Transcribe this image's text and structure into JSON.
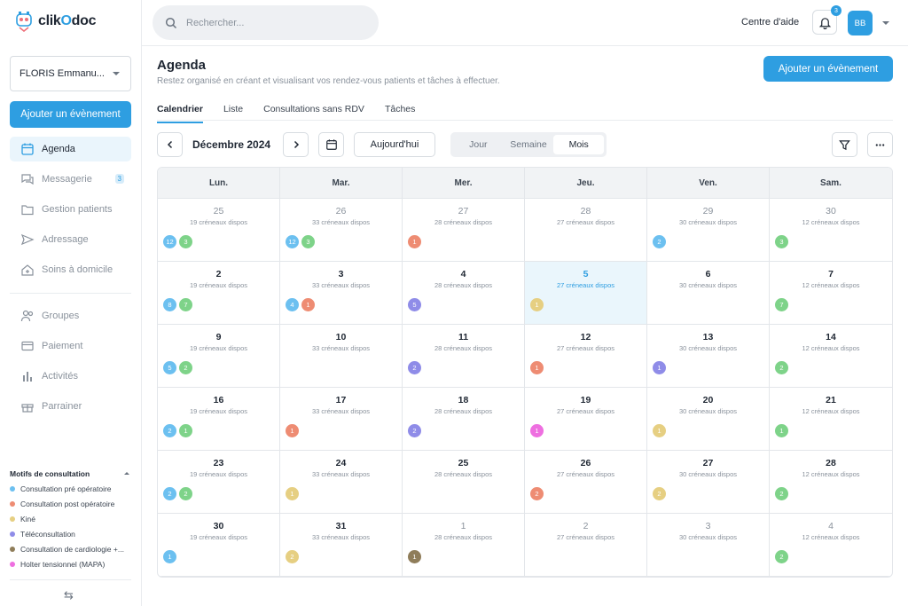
{
  "brand": {
    "name_prefix": "clik",
    "name_o": "O",
    "name_suffix": "doc"
  },
  "sidebar": {
    "user": "FLORIS Emmanu...",
    "add_label": "Ajouter un évènement",
    "items": [
      {
        "label": "Agenda",
        "icon": "calendar-icon"
      },
      {
        "label": "Messagerie",
        "icon": "chat-icon",
        "badge": "3"
      },
      {
        "label": "Gestion patients",
        "icon": "folder-icon"
      },
      {
        "label": "Adressage",
        "icon": "send-icon"
      },
      {
        "label": "Soins à domicile",
        "icon": "home-care-icon"
      },
      {
        "label": "Groupes",
        "icon": "users-icon"
      },
      {
        "label": "Paiement",
        "icon": "card-icon"
      },
      {
        "label": "Activités",
        "icon": "bar-chart-icon"
      },
      {
        "label": "Parrainer",
        "icon": "gift-icon"
      }
    ],
    "motifs_title": "Motifs de consultation",
    "motifs": [
      {
        "label": "Consultation pré opératoire",
        "color": "#6cc0f0"
      },
      {
        "label": "Consultation post opératoire",
        "color": "#ee8c73"
      },
      {
        "label": "Kiné",
        "color": "#e6cf82"
      },
      {
        "label": "Téléconsultation",
        "color": "#8f8ce8"
      },
      {
        "label": "Consultation de cardiologie +...",
        "color": "#8f7d5a"
      },
      {
        "label": "Holter tensionnel (MAPA)",
        "color": "#ee6fe0"
      }
    ]
  },
  "topbar": {
    "search_placeholder": "Rechercher...",
    "help": "Centre d'aide",
    "notif_count": "3",
    "avatar": "BB"
  },
  "page": {
    "title": "Agenda",
    "subtitle": "Restez organisé en créant et visualisant vos rendez-vous patients et tâches à effectuer.",
    "add_label": "Ajouter un évènement"
  },
  "tabs": [
    "Calendrier",
    "Liste",
    "Consultations sans RDV",
    "Tâches"
  ],
  "toolbar": {
    "month": "Décembre 2024",
    "today": "Aujourd'hui",
    "views": [
      "Jour",
      "Semaine",
      "Mois"
    ],
    "active_view": "Mois"
  },
  "colors": {
    "blue": "#6cc0f0",
    "green": "#7ed389",
    "red": "#ee8c73",
    "yellow": "#e6cf82",
    "purple": "#8f8ce8",
    "brown": "#8f7d5a",
    "pink": "#ee6fe0"
  },
  "calendar": {
    "days": [
      "Lun.",
      "Mar.",
      "Mer.",
      "Jeu.",
      "Ven.",
      "Sam."
    ],
    "weeks": [
      [
        {
          "d": "25",
          "s": "19 créneaux dispos",
          "m": true,
          "b": [
            [
              "12",
              "blue"
            ],
            [
              "3",
              "green"
            ]
          ]
        },
        {
          "d": "26",
          "s": "33 créneaux dispos",
          "m": true,
          "b": [
            [
              "12",
              "blue"
            ],
            [
              "3",
              "green"
            ]
          ]
        },
        {
          "d": "27",
          "s": "28 créneaux dispos",
          "m": true,
          "b": [
            [
              "1",
              "red"
            ]
          ]
        },
        {
          "d": "28",
          "s": "27 créneaux dispos",
          "m": true,
          "b": []
        },
        {
          "d": "29",
          "s": "30 créneaux dispos",
          "m": true,
          "b": [
            [
              "2",
              "blue"
            ]
          ]
        },
        {
          "d": "30",
          "s": "12 créneaux dispos",
          "m": true,
          "b": [
            [
              "3",
              "green"
            ]
          ]
        }
      ],
      [
        {
          "d": "2",
          "s": "19 créneaux dispos",
          "b": [
            [
              "8",
              "blue"
            ],
            [
              "7",
              "green"
            ]
          ]
        },
        {
          "d": "3",
          "s": "33 créneaux dispos",
          "b": [
            [
              "4",
              "blue"
            ],
            [
              "1",
              "red"
            ]
          ]
        },
        {
          "d": "4",
          "s": "28 créneaux dispos",
          "b": [
            [
              "5",
              "purple"
            ]
          ]
        },
        {
          "d": "5",
          "s": "27 créneaux dispos",
          "t": true,
          "b": [
            [
              "1",
              "yellow"
            ]
          ]
        },
        {
          "d": "6",
          "s": "30 créneaux dispos",
          "b": []
        },
        {
          "d": "7",
          "s": "12 créneaux dispos",
          "b": [
            [
              "7",
              "green"
            ]
          ]
        }
      ],
      [
        {
          "d": "9",
          "s": "19 créneaux dispos",
          "b": [
            [
              "5",
              "blue"
            ],
            [
              "2",
              "green"
            ]
          ]
        },
        {
          "d": "10",
          "s": "33 créneaux dispos",
          "b": []
        },
        {
          "d": "11",
          "s": "28 créneaux dispos",
          "b": [
            [
              "2",
              "purple"
            ]
          ]
        },
        {
          "d": "12",
          "s": "27 créneaux dispos",
          "b": [
            [
              "1",
              "red"
            ]
          ]
        },
        {
          "d": "13",
          "s": "30 créneaux dispos",
          "b": [
            [
              "1",
              "purple"
            ]
          ]
        },
        {
          "d": "14",
          "s": "12 créneaux dispos",
          "b": [
            [
              "2",
              "green"
            ]
          ]
        }
      ],
      [
        {
          "d": "16",
          "s": "19 créneaux dispos",
          "b": [
            [
              "2",
              "blue"
            ],
            [
              "1",
              "green"
            ]
          ]
        },
        {
          "d": "17",
          "s": "33 créneaux dispos",
          "b": [
            [
              "1",
              "red"
            ]
          ]
        },
        {
          "d": "18",
          "s": "28 créneaux dispos",
          "b": [
            [
              "2",
              "purple"
            ]
          ]
        },
        {
          "d": "19",
          "s": "27 créneaux dispos",
          "b": [
            [
              "1",
              "pink"
            ]
          ]
        },
        {
          "d": "20",
          "s": "30 créneaux dispos",
          "b": [
            [
              "1",
              "yellow"
            ]
          ]
        },
        {
          "d": "21",
          "s": "12 créneaux dispos",
          "b": [
            [
              "1",
              "green"
            ]
          ]
        }
      ],
      [
        {
          "d": "23",
          "s": "19 créneaux dispos",
          "b": [
            [
              "2",
              "blue"
            ],
            [
              "2",
              "green"
            ]
          ]
        },
        {
          "d": "24",
          "s": "33 créneaux dispos",
          "b": [
            [
              "1",
              "yellow"
            ]
          ]
        },
        {
          "d": "25",
          "s": "28 créneaux dispos",
          "b": []
        },
        {
          "d": "26",
          "s": "27 créneaux dispos",
          "b": [
            [
              "2",
              "red"
            ]
          ]
        },
        {
          "d": "27",
          "s": "30 créneaux dispos",
          "b": [
            [
              "2",
              "yellow"
            ]
          ]
        },
        {
          "d": "28",
          "s": "12 créneaux dispos",
          "b": [
            [
              "2",
              "green"
            ]
          ]
        }
      ],
      [
        {
          "d": "30",
          "s": "19 créneaux dispos",
          "b": [
            [
              "1",
              "blue"
            ]
          ]
        },
        {
          "d": "31",
          "s": "33 créneaux dispos",
          "b": [
            [
              "2",
              "yellow"
            ]
          ]
        },
        {
          "d": "1",
          "s": "28 créneaux dispos",
          "m": true,
          "b": [
            [
              "1",
              "brown"
            ]
          ]
        },
        {
          "d": "2",
          "s": "27 créneaux dispos",
          "m": true,
          "b": []
        },
        {
          "d": "3",
          "s": "30 créneaux dispos",
          "m": true,
          "b": []
        },
        {
          "d": "4",
          "s": "12 créneaux dispos",
          "m": true,
          "b": [
            [
              "2",
              "green"
            ]
          ]
        }
      ]
    ]
  }
}
